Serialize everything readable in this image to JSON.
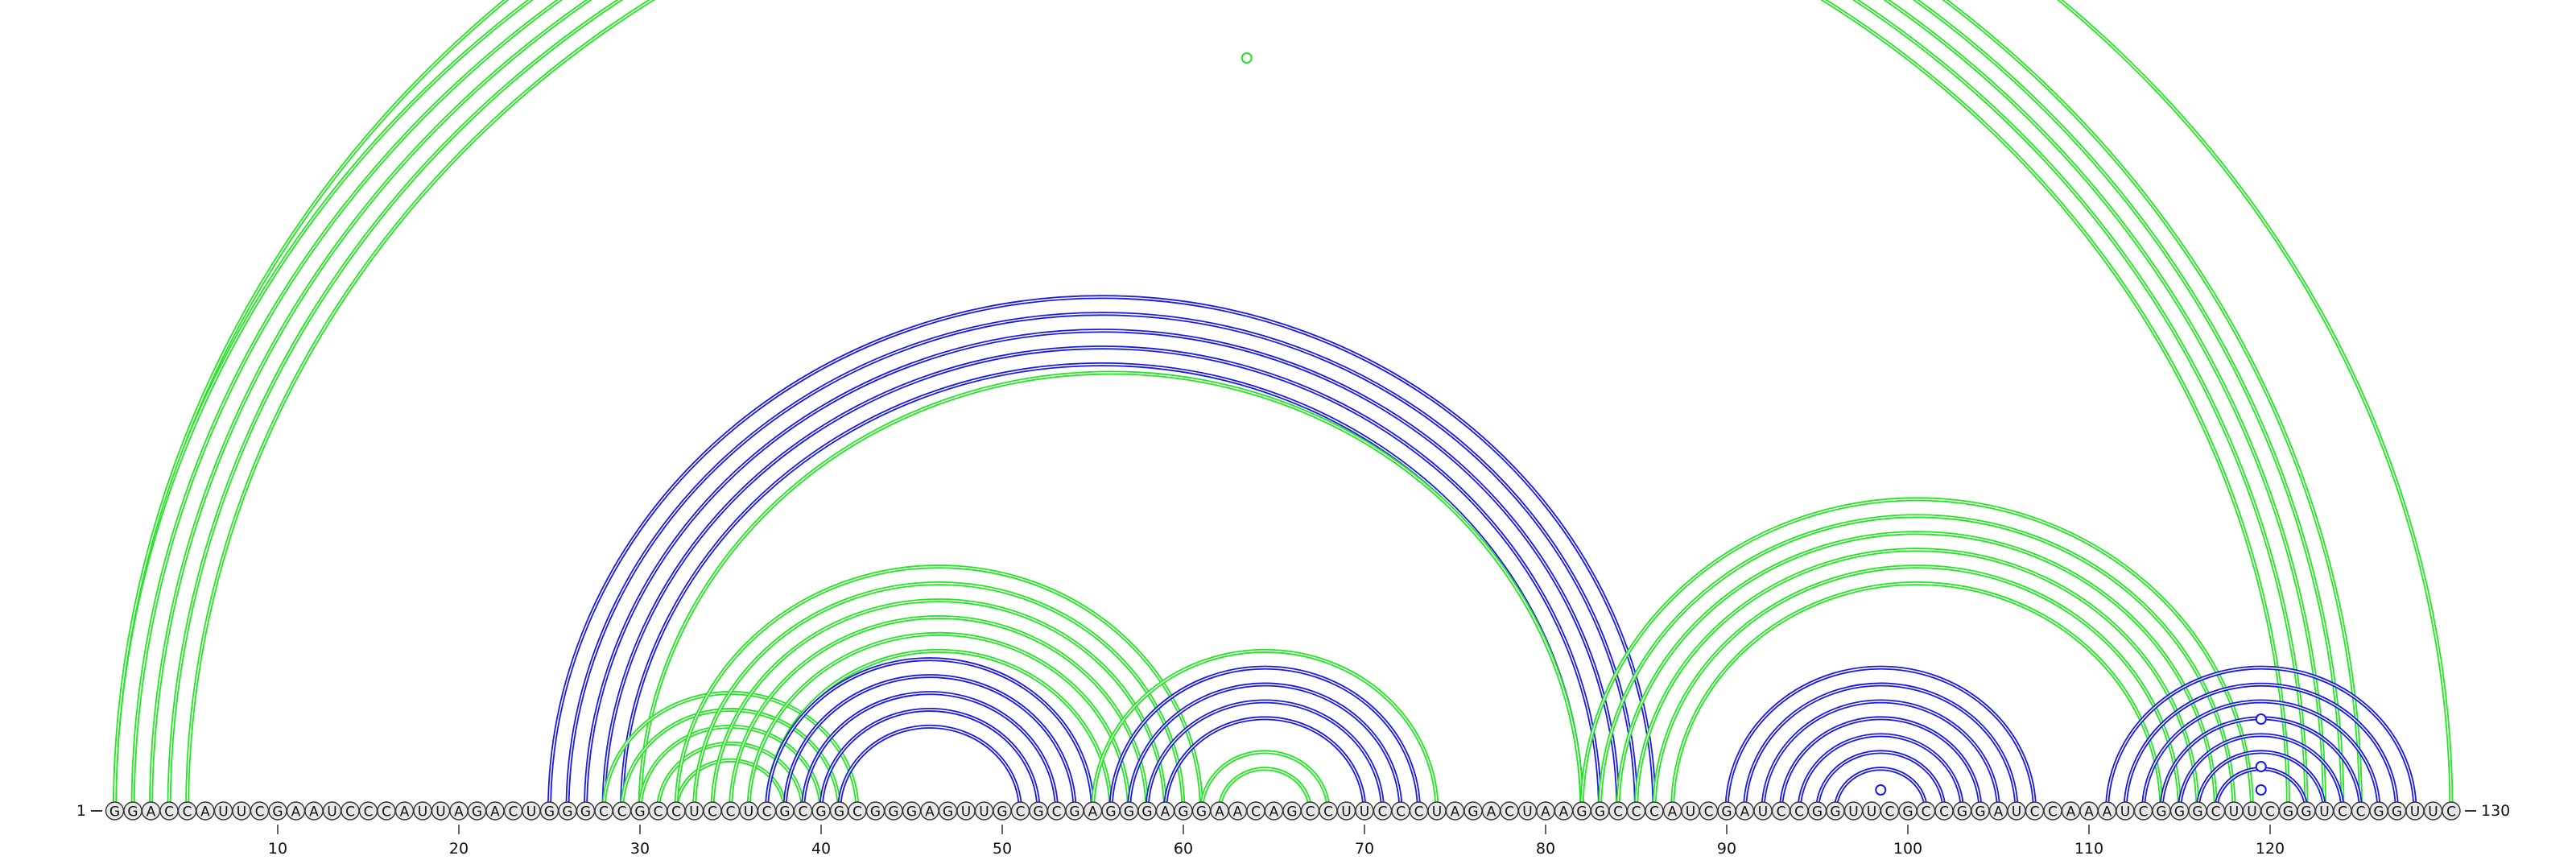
{
  "sequence": "GGACCAUUCGAAUCCCAUUAGACUGGGCCGCCUCCUCGCGGCGGGAGUUGCGCGAGGGAGGAACAGCCUUCCCUAGACUAAGGCCCAUCGAUCCGGUUCGCCGGAUCCAAAUCGGGCUUCGGUCCGGUUC",
  "start_label": "1",
  "end_label": "130",
  "ticks": [
    10,
    20,
    30,
    40,
    50,
    60,
    70,
    80,
    90,
    100,
    110,
    120
  ],
  "colors": {
    "blue": "#1a1ae6",
    "green": "#22e622",
    "node_fill": "#e8e8e8",
    "node_stroke": "#333333"
  },
  "helices": [
    {
      "color": "green",
      "i": 1,
      "j": 125,
      "n": 5,
      "step": 1
    },
    {
      "color": "green",
      "i": 1,
      "j": 130,
      "n": 1,
      "step": 1
    },
    {
      "color": "blue",
      "i": 25,
      "j": 86,
      "n": 5,
      "step": 1
    },
    {
      "color": "green",
      "i": 30,
      "j": 82,
      "n": 1,
      "step": 1
    },
    {
      "color": "green",
      "i": 28,
      "j": 42,
      "n": 5,
      "step": 1
    },
    {
      "color": "green",
      "i": 32,
      "j": 61,
      "n": 6,
      "step": 1
    },
    {
      "color": "blue",
      "i": 37,
      "j": 55,
      "n": 5,
      "step": 1
    },
    {
      "color": "green",
      "i": 55,
      "j": 74,
      "n": 1,
      "step": 1
    },
    {
      "color": "blue",
      "i": 56,
      "j": 73,
      "n": 4,
      "step": 1
    },
    {
      "color": "green",
      "i": 61,
      "j": 68,
      "n": 2,
      "step": 1
    },
    {
      "color": "green",
      "i": 82,
      "j": 119,
      "n": 6,
      "step": 1
    },
    {
      "color": "blue",
      "i": 90,
      "j": 107,
      "n": 7,
      "step": 1
    },
    {
      "color": "blue",
      "i": 111,
      "j": 128,
      "n": 7,
      "step": 1
    }
  ],
  "loops": [
    {
      "color": "green",
      "x": 63.5,
      "r": 62
    },
    {
      "color": "blue",
      "x": 98.5,
      "r": 0
    },
    {
      "color": "blue",
      "x": 119.5,
      "r": 4
    },
    {
      "color": "blue",
      "x": 119.5,
      "r": 2
    },
    {
      "color": "blue",
      "x": 119.5,
      "r": 0
    }
  ]
}
